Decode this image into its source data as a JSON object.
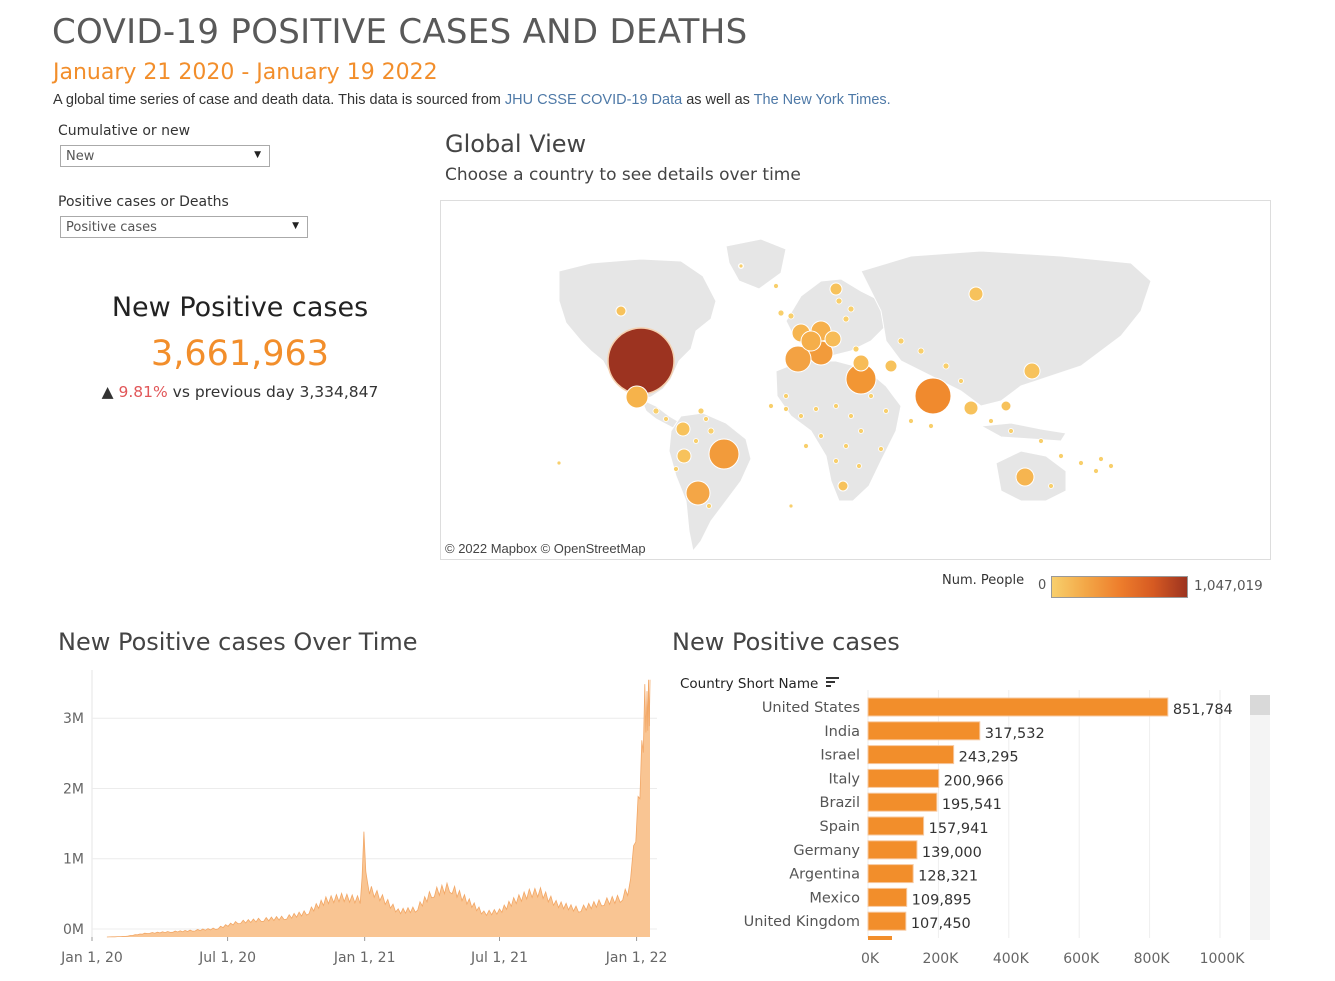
{
  "header": {
    "title": "COVID-19 POSITIVE CASES AND DEATHS",
    "date_range": "January 21 2020 - January 19 2022",
    "description_prefix": "A global time series of case and death data. This data is sourced from",
    "link_jhu": "JHU CSSE COVID-19 Data",
    "description_middle": "as well as",
    "link_nyt": "The New York Times."
  },
  "filters": {
    "measure_label": "Cumulative or new",
    "measure_value": "New",
    "metric_label": "Positive cases or Deaths",
    "metric_value": "Positive cases"
  },
  "kpi": {
    "title": "New Positive cases",
    "value": "3,661,963",
    "arrow": "▲",
    "pct_change": "9.81%",
    "compare_text": "vs previous day 3,334,847"
  },
  "map": {
    "title": "Global View",
    "subtitle": "Choose a country to see details over time",
    "credit": "© 2022 Mapbox  © OpenStreetMap",
    "legend_title": "Num. People",
    "legend_min": "0",
    "legend_max": "1,047,019",
    "colors": {
      "low": "#f8cf6c",
      "mid": "#f28e2b",
      "high": "#9c3320"
    }
  },
  "timeline": {
    "title": "New Positive cases Over Time"
  },
  "bars": {
    "title": "New Positive cases",
    "header": "Country Short Name"
  },
  "chart_data": [
    {
      "type": "area",
      "title": "New Positive cases Over Time",
      "x_ticks": [
        "Jan 1, 20",
        "Jul 1, 20",
        "Jan 1, 21",
        "Jul 1, 21",
        "Jan 1, 22"
      ],
      "y_ticks": [
        "0M",
        "1M",
        "2M",
        "3M"
      ],
      "ylim": [
        0,
        3800000
      ],
      "color": "#f9c593",
      "x": [
        "2020-01-21",
        "2020-02-15",
        "2020-03-15",
        "2020-04-15",
        "2020-05-15",
        "2020-06-15",
        "2020-07-15",
        "2020-08-15",
        "2020-09-15",
        "2020-10-15",
        "2020-11-10",
        "2020-12-01",
        "2020-12-26",
        "2020-12-31",
        "2021-01-05",
        "2021-01-10",
        "2021-01-25",
        "2021-02-15",
        "2021-03-10",
        "2021-04-01",
        "2021-04-25",
        "2021-05-15",
        "2021-06-10",
        "2021-07-01",
        "2021-07-20",
        "2021-08-10",
        "2021-08-25",
        "2021-09-15",
        "2021-10-15",
        "2021-11-15",
        "2021-12-10",
        "2021-12-20",
        "2021-12-28",
        "2022-01-03",
        "2022-01-08",
        "2022-01-12",
        "2022-01-15",
        "2022-01-17",
        "2022-01-19"
      ],
      "values": [
        0,
        10000,
        60000,
        80000,
        100000,
        130000,
        230000,
        270000,
        300000,
        380000,
        570000,
        620000,
        580000,
        1500000,
        770000,
        720000,
        600000,
        400000,
        430000,
        680000,
        780000,
        600000,
        370000,
        400000,
        560000,
        680000,
        700000,
        520000,
        430000,
        540000,
        600000,
        720000,
        1300000,
        2000000,
        2800000,
        3600000,
        3500000,
        3660000,
        3660000
      ]
    },
    {
      "type": "bar",
      "title": "New Positive cases",
      "xlabel": "",
      "ylabel": "Country Short Name",
      "categories": [
        "United States",
        "India",
        "Israel",
        "Italy",
        "Brazil",
        "Spain",
        "Germany",
        "Argentina",
        "Mexico",
        "United Kingdom"
      ],
      "values": [
        851784,
        317532,
        243295,
        200966,
        195541,
        157941,
        139000,
        128321,
        109895,
        107450
      ],
      "value_labels": [
        "851,784",
        "317,532",
        "243,295",
        "200,966",
        "195,541",
        "157,941",
        "139,000",
        "128,321",
        "109,895",
        "107,450"
      ],
      "x_ticks": [
        "0K",
        "200K",
        "400K",
        "600K",
        "800K",
        "1000K"
      ],
      "xlim": [
        0,
        1000000
      ],
      "color": "#f28e2b"
    }
  ]
}
